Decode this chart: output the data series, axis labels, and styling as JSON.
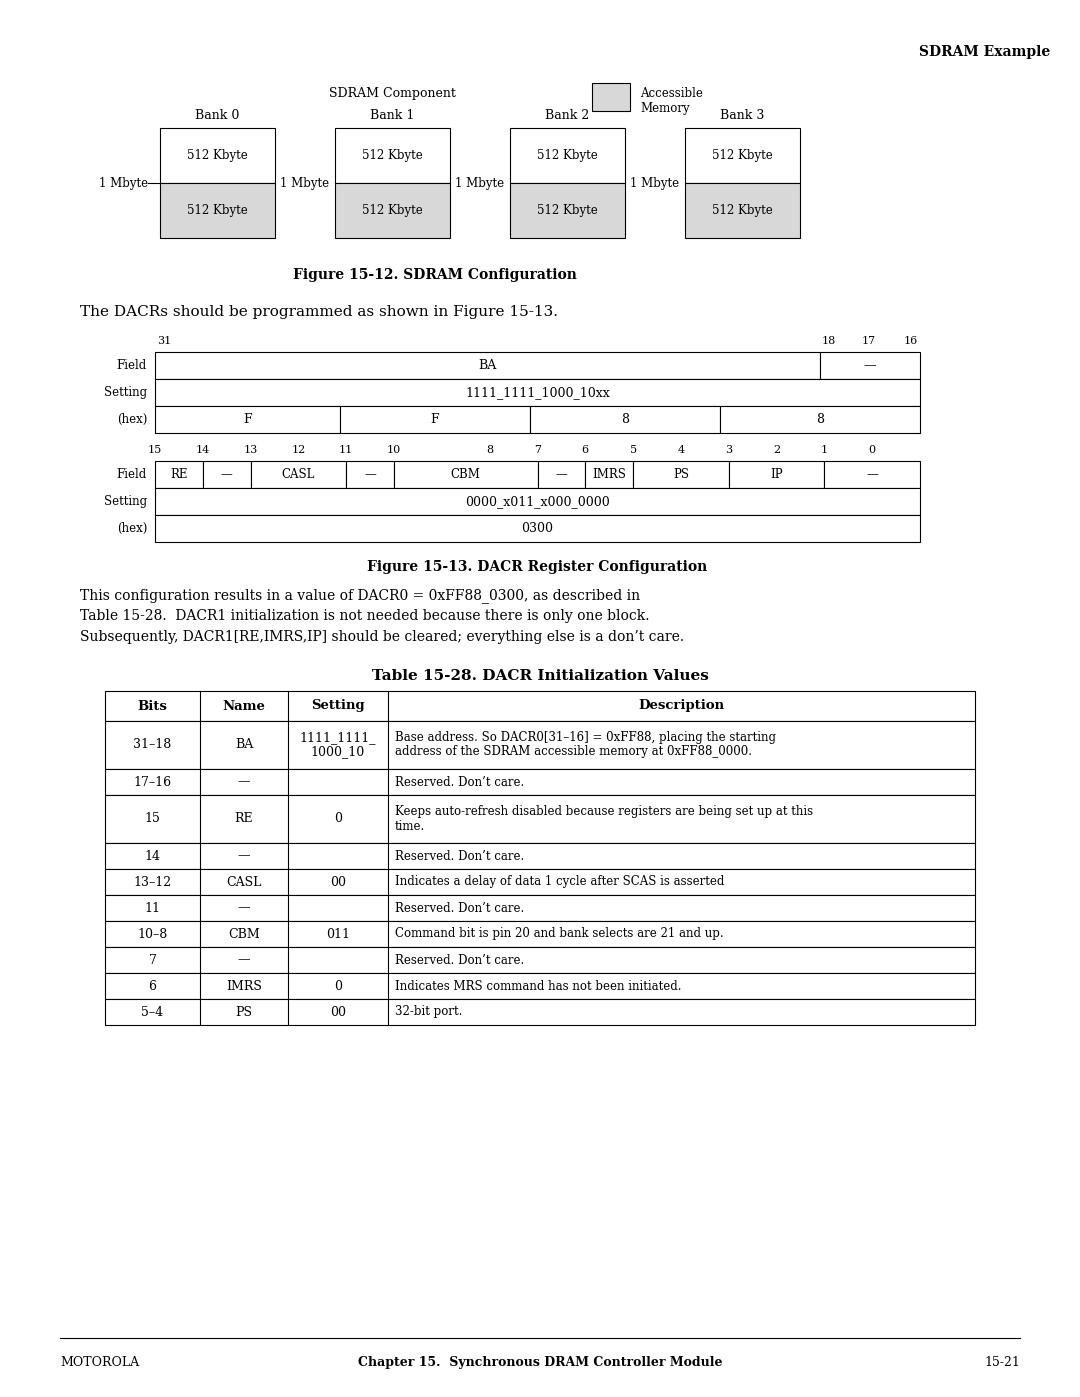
{
  "page_bg": "#ffffff",
  "top_right_text": "SDRAM Example",
  "fig1_title": "Figure 15-12. SDRAM Configuration",
  "fig2_title": "Figure 15-13. DACR Register Configuration",
  "table_title": "Table 15-28. DACR Initialization Values",
  "paragraph1": "The DACRs should be programmed as shown in Figure 15-13.",
  "paragraph2_lines": [
    "This configuration results in a value of DACR0 = 0xFF88_0300, as described in",
    "Table 15-28.  DACR1 initialization is not needed because there is only one block.",
    "Subsequently, DACR1[RE,IMRS,IP] should be cleared; everything else is a don’t care."
  ],
  "footer_left": "MOTOROLA",
  "footer_center": "Chapter 15.  Synchronous DRAM Controller Module",
  "footer_right": "15-21",
  "banks": [
    "Bank 0",
    "Bank 1",
    "Bank 2",
    "Bank 3"
  ],
  "legend_label1": "SDRAM Component",
  "legend_label2": "Accessible\nMemory",
  "table_headers": [
    "Bits",
    "Name",
    "Setting",
    "Description"
  ],
  "table_rows": [
    [
      "31–18",
      "BA",
      "1111_1111_\n1000_10",
      "Base address. So DACR0[31–16] = 0xFF88, placing the starting\naddress of the SDRAM accessible memory at 0xFF88_0000."
    ],
    [
      "17–16",
      "—",
      "",
      "Reserved. Don’t care."
    ],
    [
      "15",
      "RE",
      "0",
      "Keeps auto-refresh disabled because registers are being set up at this\ntime."
    ],
    [
      "14",
      "—",
      "",
      "Reserved. Don’t care."
    ],
    [
      "13–12",
      "CASL",
      "00",
      "Indicates a delay of data 1 cycle after SCAS is asserted"
    ],
    [
      "11",
      "—",
      "",
      "Reserved. Don’t care."
    ],
    [
      "10–8",
      "CBM",
      "011",
      "Command bit is pin 20 and bank selects are 21 and up."
    ],
    [
      "7",
      "—",
      "",
      "Reserved. Don’t care."
    ],
    [
      "6",
      "IMRS",
      "0",
      "Indicates MRS command has not been initiated."
    ],
    [
      "5–4",
      "PS",
      "00",
      "32-bit port."
    ]
  ]
}
